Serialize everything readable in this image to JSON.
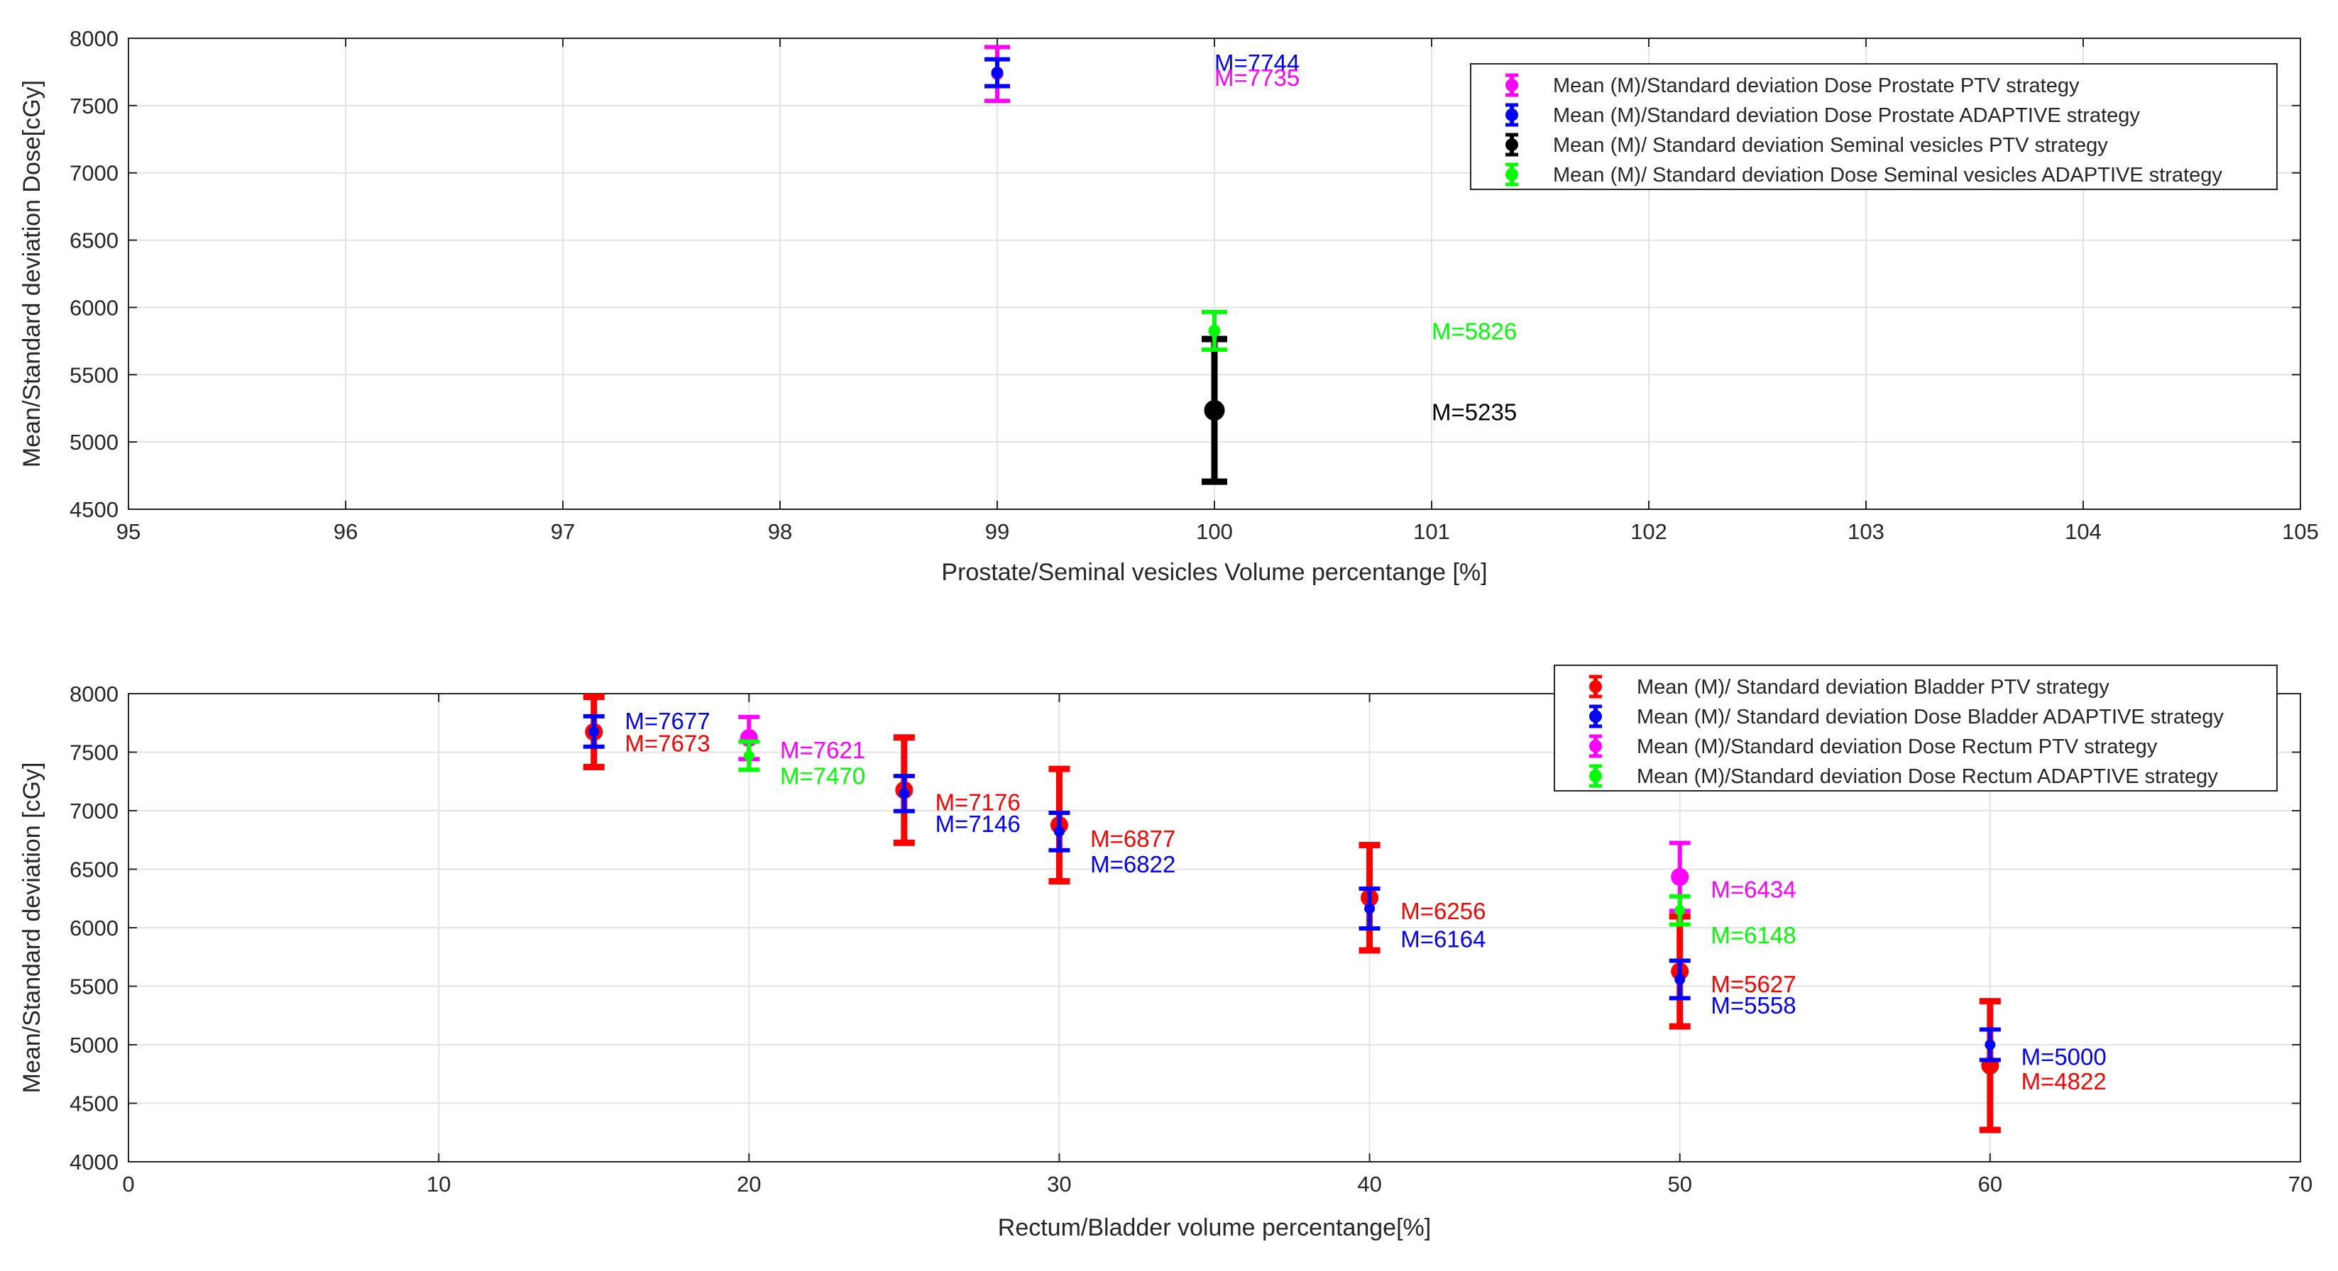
{
  "chart_data": [
    {
      "type": "errorbar",
      "title": "",
      "xlabel": "Prostate/Seminal vesicles Volume percentange [%]",
      "ylabel": "Mean/Standard deviation Dose[cGy]",
      "xlim": [
        95,
        105
      ],
      "ylim": [
        4500,
        8000
      ],
      "xticks": [
        95,
        96,
        97,
        98,
        99,
        100,
        101,
        102,
        103,
        104,
        105
      ],
      "yticks": [
        4500,
        5000,
        5500,
        6000,
        6500,
        7000,
        7500,
        8000
      ],
      "grid": true,
      "legend_position": "top-right",
      "series": [
        {
          "name": "Mean (M)/Standard deviation Dose Prostate PTV strategy",
          "color": "#ff00ff",
          "points": [
            {
              "x": 99,
              "y": 7735,
              "err": 200
            }
          ]
        },
        {
          "name": "Mean (M)/Standard deviation Dose Prostate ADAPTIVE strategy",
          "color": "#0000ff",
          "points": [
            {
              "x": 99,
              "y": 7744,
              "err": 100
            }
          ]
        },
        {
          "name": "Mean (M)/ Standard deviation Seminal vesicles PTV strategy",
          "color": "#000000",
          "points": [
            {
              "x": 100,
              "y": 5235,
              "err": 530
            }
          ]
        },
        {
          "name": "Mean (M)/ Standard deviation Dose Seminal vesicles ADAPTIVE strategy",
          "color": "#00ff00",
          "points": [
            {
              "x": 100,
              "y": 5826,
              "err": 140
            }
          ]
        }
      ],
      "annotations": [
        {
          "text": "M=7744",
          "x": 100,
          "y": 7820,
          "color": "#0000ff"
        },
        {
          "text": "M=7735",
          "x": 100,
          "y": 7710,
          "color": "#ff00ff"
        },
        {
          "text": "M=5826",
          "x": 101,
          "y": 5826,
          "color": "#00ff00"
        },
        {
          "text": "M=5235",
          "x": 101,
          "y": 5225,
          "color": "#000000"
        }
      ]
    },
    {
      "type": "errorbar",
      "title": "",
      "xlabel": "Rectum/Bladder volume percentange[%]",
      "ylabel": "Mean/Standard deviation [cGy]",
      "xlim": [
        0,
        70
      ],
      "ylim": [
        4000,
        8000
      ],
      "xticks": [
        0,
        10,
        20,
        30,
        40,
        50,
        60,
        70
      ],
      "yticks": [
        4000,
        4500,
        5000,
        5500,
        6000,
        6500,
        7000,
        7500,
        8000
      ],
      "grid": true,
      "legend_position": "top-right",
      "series": [
        {
          "name": "Mean (M)/ Standard deviation Bladder PTV strategy",
          "color": "#ff0000",
          "points": [
            {
              "x": 15,
              "y": 7673,
              "err": 300
            },
            {
              "x": 25,
              "y": 7176,
              "err": 450
            },
            {
              "x": 30,
              "y": 6877,
              "err": 480
            },
            {
              "x": 40,
              "y": 6256,
              "err": 450
            },
            {
              "x": 50,
              "y": 5627,
              "err": 470
            },
            {
              "x": 60,
              "y": 4822,
              "err": 550
            }
          ]
        },
        {
          "name": "Mean (M)/ Standard deviation Dose Bladder ADAPTIVE strategy",
          "color": "#0000ff",
          "points": [
            {
              "x": 15,
              "y": 7677,
              "err": 130
            },
            {
              "x": 25,
              "y": 7146,
              "err": 150
            },
            {
              "x": 30,
              "y": 6822,
              "err": 160
            },
            {
              "x": 40,
              "y": 6164,
              "err": 170
            },
            {
              "x": 50,
              "y": 5558,
              "err": 160
            },
            {
              "x": 60,
              "y": 5000,
              "err": 130
            }
          ]
        },
        {
          "name": "Mean (M)/Standard deviation Dose Rectum PTV strategy",
          "color": "#ff00ff",
          "points": [
            {
              "x": 20,
              "y": 7621,
              "err": 180
            },
            {
              "x": 50,
              "y": 6434,
              "err": 290
            }
          ]
        },
        {
          "name": "Mean (M)/Standard deviation Dose Rectum ADAPTIVE strategy",
          "color": "#00ff00",
          "points": [
            {
              "x": 20,
              "y": 7470,
              "err": 120
            },
            {
              "x": 50,
              "y": 6148,
              "err": 120
            }
          ]
        }
      ],
      "annotations": [
        {
          "text": "M=7677",
          "x": 16,
          "y": 7770,
          "color": "#0000ff"
        },
        {
          "text": "M=7673",
          "x": 16,
          "y": 7580,
          "color": "#ff0000"
        },
        {
          "text": "M=7621",
          "x": 21,
          "y": 7520,
          "color": "#ff00ff"
        },
        {
          "text": "M=7470",
          "x": 21,
          "y": 7300,
          "color": "#00ff00"
        },
        {
          "text": "M=7176",
          "x": 26,
          "y": 7075,
          "color": "#ff0000"
        },
        {
          "text": "M=7146",
          "x": 26,
          "y": 6890,
          "color": "#0000ff"
        },
        {
          "text": "M=6877",
          "x": 31,
          "y": 6765,
          "color": "#ff0000"
        },
        {
          "text": "M=6822",
          "x": 31,
          "y": 6545,
          "color": "#0000ff"
        },
        {
          "text": "M=6256",
          "x": 41,
          "y": 6145,
          "color": "#ff0000"
        },
        {
          "text": "M=6164",
          "x": 41,
          "y": 5905,
          "color": "#0000ff"
        },
        {
          "text": "M=6434",
          "x": 51,
          "y": 6330,
          "color": "#ff00ff"
        },
        {
          "text": "M=6148",
          "x": 51,
          "y": 5940,
          "color": "#00ff00"
        },
        {
          "text": "M=5627",
          "x": 51,
          "y": 5520,
          "color": "#ff0000"
        },
        {
          "text": "M=5558",
          "x": 51,
          "y": 5340,
          "color": "#0000ff"
        },
        {
          "text": "M=5000",
          "x": 61,
          "y": 4900,
          "color": "#0000ff"
        },
        {
          "text": "M=4822",
          "x": 61,
          "y": 4690,
          "color": "#ff0000"
        }
      ]
    }
  ]
}
